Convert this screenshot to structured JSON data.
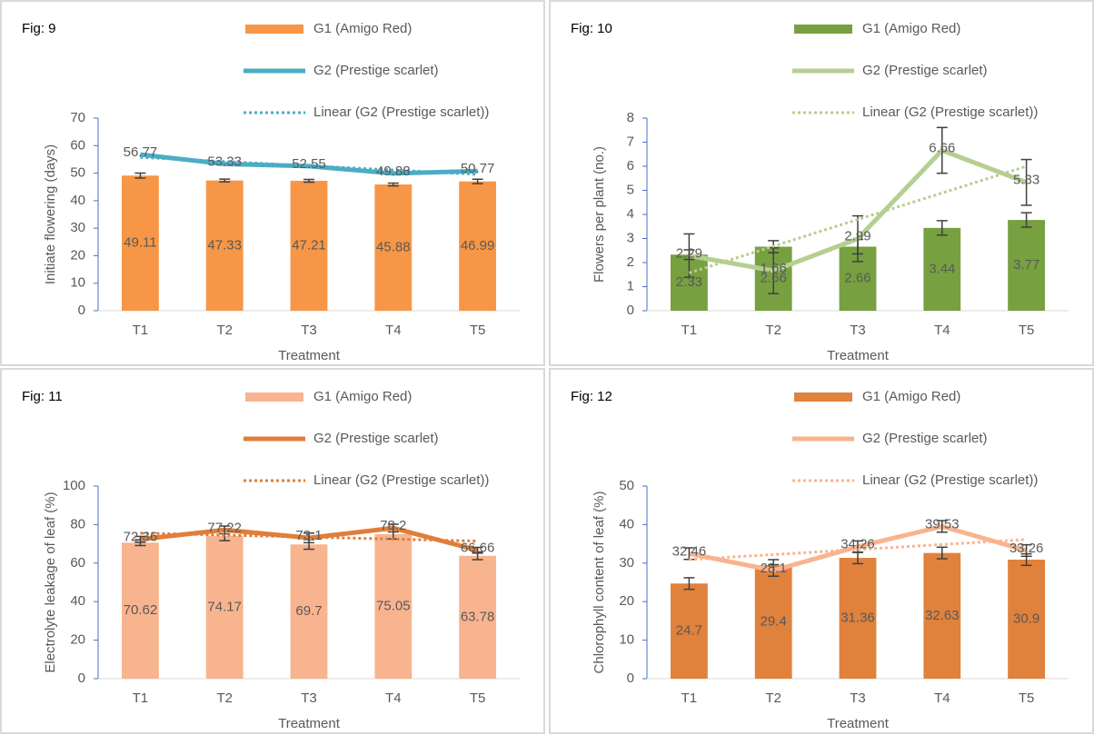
{
  "chart_data": [
    {
      "type": "bar_line",
      "title": "Fig: 9",
      "y_label": "Initiate flowering (days)",
      "x_label": "Treatment",
      "categories": [
        "T1",
        "T2",
        "T3",
        "T4",
        "T5"
      ],
      "ylim": [
        0,
        70
      ],
      "yticks": [
        0,
        10,
        20,
        30,
        40,
        50,
        60,
        70
      ],
      "series": [
        {
          "name": "G1 (Amigo Red)",
          "kind": "bar",
          "color": "#f79646",
          "values": [
            49.11,
            47.33,
            47.21,
            45.88,
            46.99
          ],
          "errors": [
            0.9,
            0.5,
            0.5,
            0.5,
            0.8
          ]
        },
        {
          "name": "G2 (Prestige scarlet)",
          "kind": "line",
          "color": "#4bacc6",
          "values": [
            56.77,
            53.33,
            52.55,
            49.88,
            50.77
          ]
        },
        {
          "name": "Linear (G2 (Prestige scarlet))",
          "kind": "trend",
          "color": "#4bacc6",
          "values": [
            55.75,
            54.21,
            52.66,
            51.12,
            49.57
          ]
        }
      ]
    },
    {
      "type": "bar_line",
      "title": "Fig: 10",
      "y_label": "Flowers per plant (no.)",
      "x_label": "Treatment",
      "categories": [
        "T1",
        "T2",
        "T3",
        "T4",
        "T5"
      ],
      "ylim": [
        0,
        8
      ],
      "yticks": [
        0,
        1,
        2,
        3,
        4,
        5,
        6,
        7,
        8
      ],
      "series": [
        {
          "name": "G1 (Amigo Red)",
          "kind": "bar",
          "color": "#77a040",
          "values": [
            2.33,
            2.66,
            2.66,
            3.44,
            3.77
          ],
          "errors": [
            0.2,
            0.25,
            0.3,
            0.3,
            0.3
          ]
        },
        {
          "name": "G2 (Prestige scarlet)",
          "kind": "line",
          "color": "#b5cf90",
          "values": [
            2.29,
            1.66,
            2.99,
            6.66,
            5.33
          ],
          "errors": [
            0.9,
            0.95,
            0.95,
            0.95,
            0.95
          ]
        },
        {
          "name": "Linear (G2 (Prestige scarlet))",
          "kind": "trend",
          "color": "#b5cf90",
          "values": [
            1.57,
            2.68,
            3.79,
            4.89,
            6.0
          ]
        }
      ]
    },
    {
      "type": "bar_line",
      "title": "Fig: 11",
      "y_label": "Electrolyte leakage of leaf (%)",
      "x_label": "Treatment",
      "categories": [
        "T1",
        "T2",
        "T3",
        "T4",
        "T5"
      ],
      "ylim": [
        0,
        100
      ],
      "yticks": [
        0,
        20,
        40,
        60,
        80,
        100
      ],
      "series": [
        {
          "name": "G1 (Amigo Red)",
          "kind": "bar",
          "color": "#f8b48f",
          "values": [
            70.62,
            74.17,
            69.7,
            75.05,
            63.78
          ],
          "errors": [
            1.5,
            2.5,
            2.5,
            2.5,
            2
          ]
        },
        {
          "name": "G2 (Prestige scarlet)",
          "kind": "line",
          "color": "#e07e3a",
          "values": [
            72.36,
            77.22,
            73.1,
            78.2,
            66.66
          ],
          "errors": [
            1.5,
            2,
            2.5,
            2,
            1.5
          ]
        },
        {
          "name": "Linear (G2 (Prestige scarlet))",
          "kind": "trend",
          "color": "#e07e3a",
          "values": [
            75.59,
            74.55,
            73.51,
            72.47,
            71.43
          ]
        }
      ]
    },
    {
      "type": "bar_line",
      "title": "Fig: 12",
      "y_label": "Chlorophyll content of leaf (%)",
      "x_label": "Treatment",
      "categories": [
        "T1",
        "T2",
        "T3",
        "T4",
        "T5"
      ],
      "ylim": [
        0,
        50
      ],
      "yticks": [
        0,
        10,
        20,
        30,
        40,
        50
      ],
      "series": [
        {
          "name": "G1 (Amigo Red)",
          "kind": "bar",
          "color": "#e0813c",
          "values": [
            24.7,
            29.4,
            31.36,
            32.63,
            30.9
          ],
          "errors": [
            1.5,
            1.5,
            1.5,
            1.5,
            1.5
          ]
        },
        {
          "name": "G2 (Prestige scarlet)",
          "kind": "line",
          "color": "#f8b48f",
          "values": [
            32.46,
            28.1,
            34.26,
            39.53,
            33.26
          ],
          "errors": [
            1.5,
            1.5,
            1.5,
            1.5,
            1.5
          ]
        },
        {
          "name": "Linear (G2 (Prestige scarlet))",
          "kind": "trend",
          "color": "#f8b48f",
          "values": [
            30.92,
            32.22,
            33.52,
            34.83,
            36.13
          ]
        }
      ]
    }
  ]
}
